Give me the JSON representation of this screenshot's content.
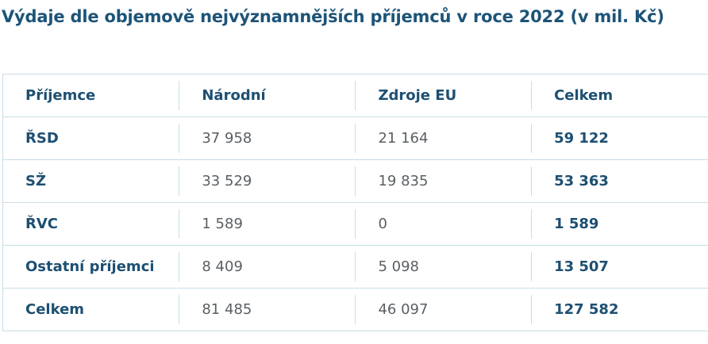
{
  "header": {
    "title": "Výdaje dle objemově nejvýznamnějších příjemců v roce 2022 (v mil. Kč)"
  },
  "table": {
    "columns": [
      "Příjemce",
      "Národní",
      "Zdroje EU",
      "Celkem"
    ],
    "rows": [
      [
        "ŘSD",
        "37 958",
        "21 164",
        "59 122"
      ],
      [
        "SŽ",
        "33 529",
        "19 835",
        "53 363"
      ],
      [
        "ŘVC",
        "1 589",
        "0",
        "1 589"
      ],
      [
        "Ostatní příjemci",
        "8 409",
        "5 098",
        "13 507"
      ],
      [
        "Celkem",
        "81 485",
        "46 097",
        "127 582"
      ]
    ]
  }
}
